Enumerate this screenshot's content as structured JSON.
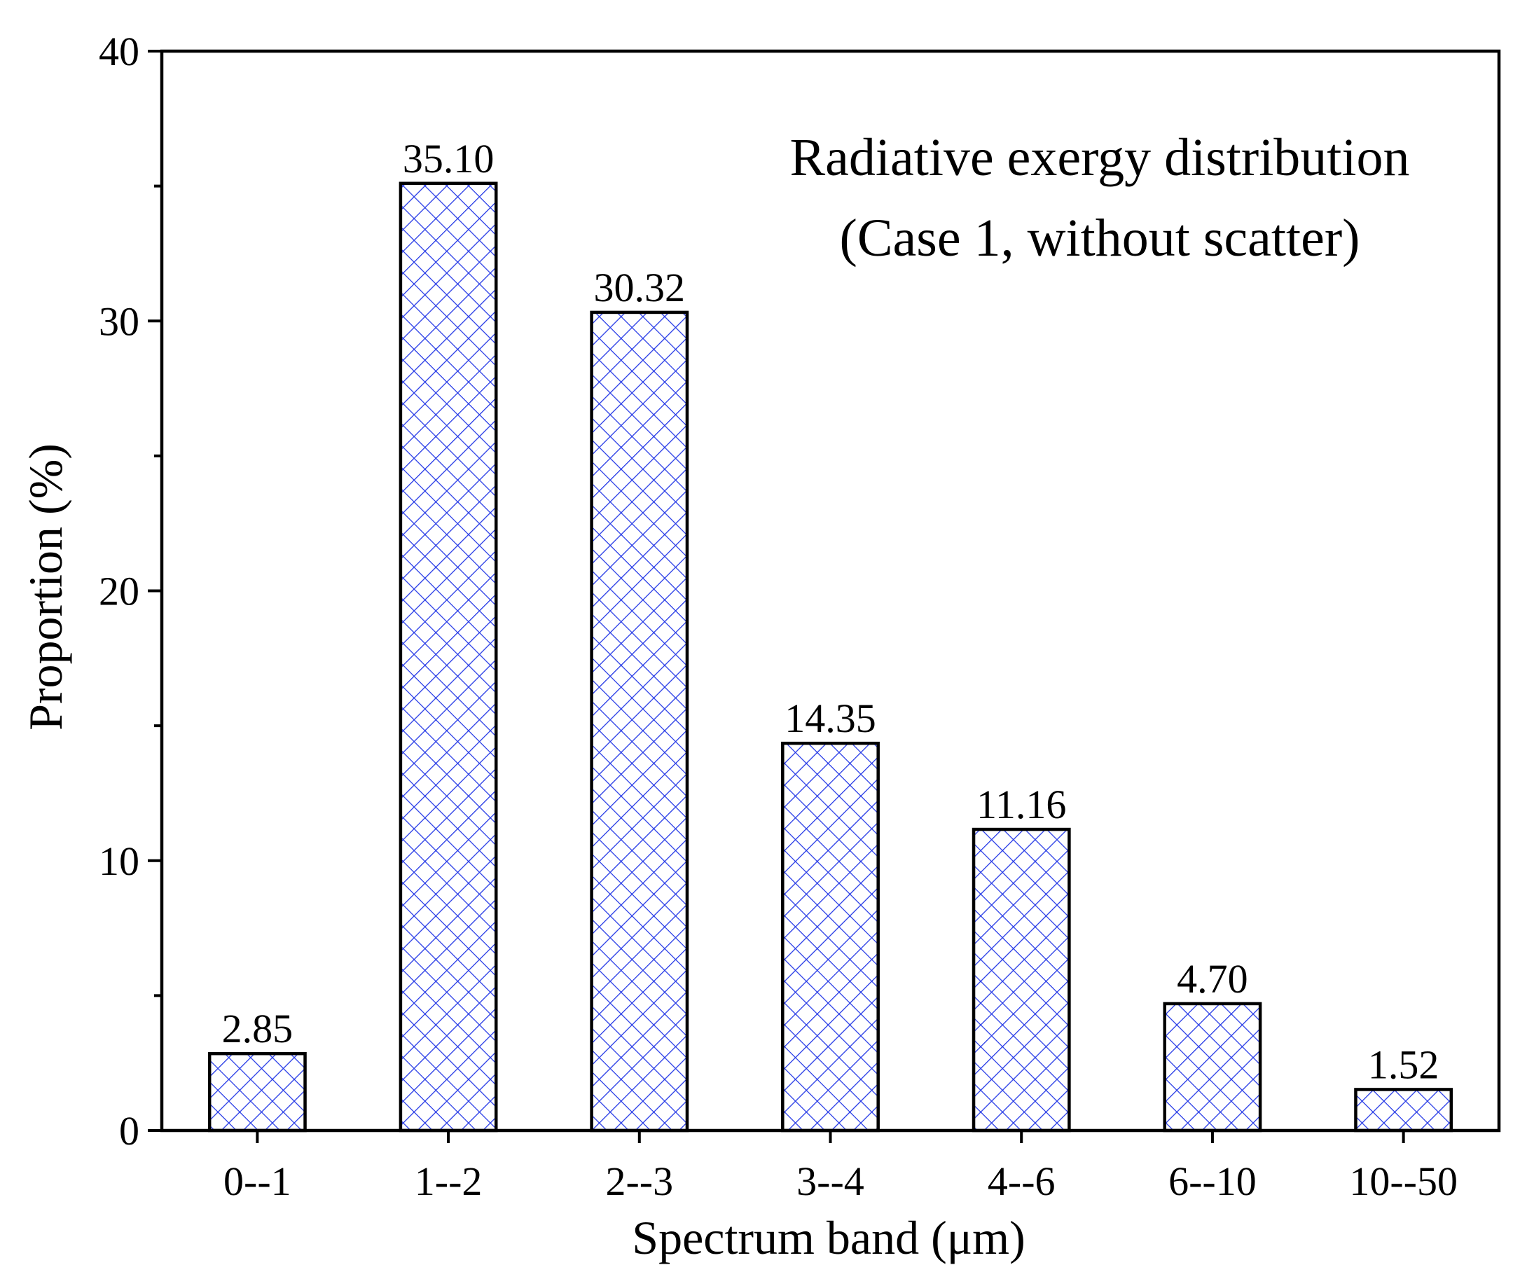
{
  "chart_data": {
    "type": "bar",
    "title": "",
    "annotation_lines": [
      "Radiative exergy distribution",
      "(Case 1, without scatter)"
    ],
    "xlabel": "Spectrum band (μm)",
    "ylabel": "Proportion (%)",
    "categories": [
      "0--1",
      "1--2",
      "2--3",
      "3--4",
      "4--6",
      "6--10",
      "10--50"
    ],
    "values": [
      2.85,
      35.1,
      30.32,
      14.35,
      11.16,
      4.7,
      1.52
    ],
    "data_labels": [
      "2.85",
      "35.10",
      "30.32",
      "14.35",
      "11.16",
      "4.70",
      "1.52"
    ],
    "ylim": [
      0,
      40
    ],
    "yticks": [
      0,
      10,
      20,
      30,
      40
    ],
    "yticks_minor": [
      5,
      15,
      25,
      35
    ],
    "grid": false,
    "bar_style": {
      "fill": "#ffffff",
      "hatch": "crosshatch",
      "hatch_color": "#2438e6",
      "edge_color": "#000000"
    }
  }
}
